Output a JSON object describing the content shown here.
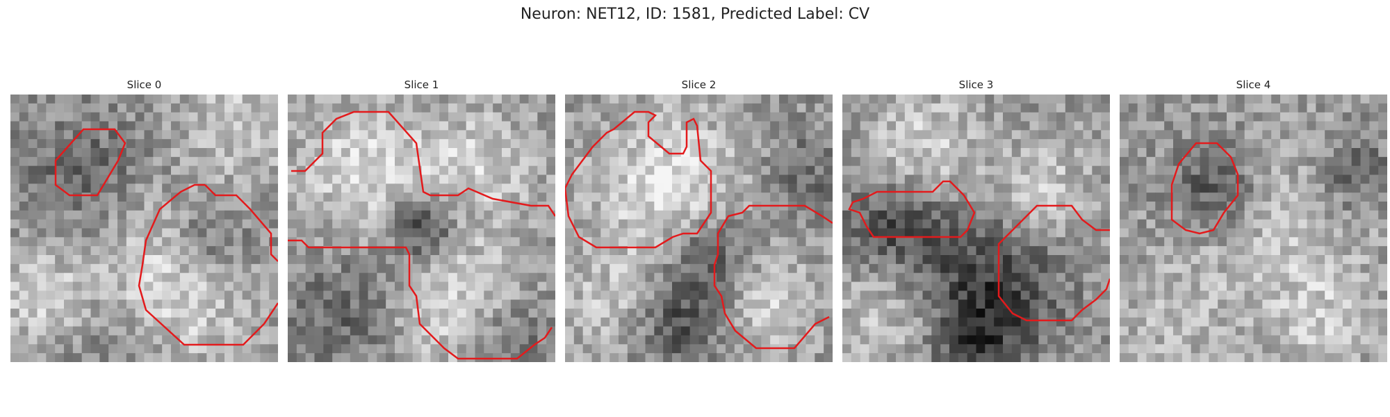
{
  "figure": {
    "title": "Neuron: NET12, ID: 1581, Predicted Label: CV"
  },
  "slices": [
    {
      "title": "Slice 0"
    },
    {
      "title": "Slice 1"
    },
    {
      "title": "Slice 2"
    },
    {
      "title": "Slice 3"
    },
    {
      "title": "Slice 4"
    }
  ],
  "colors": {
    "contour": "#e31a1c"
  }
}
